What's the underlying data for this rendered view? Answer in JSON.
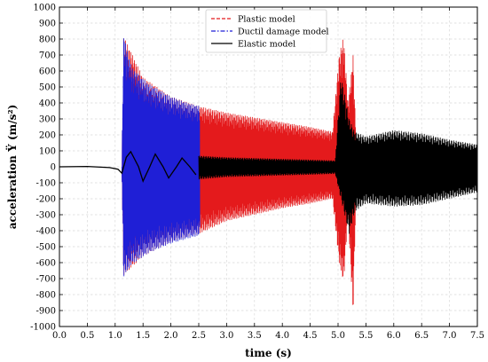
{
  "chart_data": {
    "type": "line",
    "title": "",
    "xlabel": "time (s)",
    "ylabel": "acceleration Ÿ (m/s²)",
    "xlim": [
      0.0,
      7.5
    ],
    "ylim": [
      -1000,
      1000
    ],
    "x_ticks": [
      "0.0",
      "0.5",
      "1.0",
      "1.5",
      "2.0",
      "2.5",
      "3.0",
      "3.5",
      "4.0",
      "4.5",
      "5.0",
      "5.5",
      "6.0",
      "6.5",
      "7.0",
      "7.5"
    ],
    "y_ticks": [
      "-1000",
      "-900",
      "-800",
      "-700",
      "-600",
      "-500",
      "-400",
      "-300",
      "-200",
      "-100",
      "0",
      "100",
      "200",
      "300",
      "400",
      "500",
      "600",
      "700",
      "800",
      "900",
      "1000"
    ],
    "grid": true,
    "legend_position": "top-center",
    "series": [
      {
        "name": "Plastic model",
        "color": "#e41a1c",
        "style": "dashed",
        "envelope_points": [
          {
            "x": 1.12,
            "upper": 0,
            "lower": 0
          },
          {
            "x": 1.15,
            "upper": 820,
            "lower": -680
          },
          {
            "x": 1.5,
            "upper": 560,
            "lower": -560
          },
          {
            "x": 2.0,
            "upper": 440,
            "lower": -470
          },
          {
            "x": 2.5,
            "upper": 380,
            "lower": -420
          },
          {
            "x": 3.0,
            "upper": 340,
            "lower": -340
          },
          {
            "x": 3.5,
            "upper": 310,
            "lower": -300
          },
          {
            "x": 4.0,
            "upper": 280,
            "lower": -260
          },
          {
            "x": 4.5,
            "upper": 250,
            "lower": -230
          },
          {
            "x": 4.9,
            "upper": 220,
            "lower": -200
          },
          {
            "x": 5.02,
            "upper": 700,
            "lower": -600
          },
          {
            "x": 5.1,
            "upper": 820,
            "lower": -730
          },
          {
            "x": 5.18,
            "upper": 400,
            "lower": -300
          },
          {
            "x": 5.27,
            "upper": 700,
            "lower": -930
          },
          {
            "x": 5.32,
            "upper": 200,
            "lower": -200
          },
          {
            "x": 5.35,
            "upper": 0,
            "lower": 0
          }
        ]
      },
      {
        "name": "Ductil damage model",
        "color": "#1f1fd6",
        "style": "dash-dot",
        "envelope_points": [
          {
            "x": 1.12,
            "upper": 0,
            "lower": 0
          },
          {
            "x": 1.15,
            "upper": 825,
            "lower": -690
          },
          {
            "x": 1.3,
            "upper": 620,
            "lower": -610
          },
          {
            "x": 1.6,
            "upper": 520,
            "lower": -540
          },
          {
            "x": 2.0,
            "upper": 440,
            "lower": -480
          },
          {
            "x": 2.3,
            "upper": 400,
            "lower": -450
          },
          {
            "x": 2.52,
            "upper": 380,
            "lower": -430
          }
        ]
      },
      {
        "name": "Elastic model",
        "color": "#000000",
        "style": "solid",
        "points": [
          {
            "x": 0.0,
            "y": 0
          },
          {
            "x": 0.5,
            "y": 2
          },
          {
            "x": 0.9,
            "y": -5
          },
          {
            "x": 1.05,
            "y": -15
          },
          {
            "x": 1.12,
            "y": -40
          },
          {
            "x": 1.2,
            "y": 60
          },
          {
            "x": 1.28,
            "y": 95
          },
          {
            "x": 1.42,
            "y": 0
          },
          {
            "x": 1.5,
            "y": -90
          },
          {
            "x": 1.62,
            "y": 0
          },
          {
            "x": 1.72,
            "y": 80
          },
          {
            "x": 1.86,
            "y": 0
          },
          {
            "x": 1.96,
            "y": -70
          },
          {
            "x": 2.1,
            "y": 0
          },
          {
            "x": 2.2,
            "y": 55
          },
          {
            "x": 2.34,
            "y": 0
          },
          {
            "x": 2.45,
            "y": -50
          }
        ],
        "envelope_points": [
          {
            "x": 2.5,
            "upper": 70,
            "lower": -80
          },
          {
            "x": 3.0,
            "upper": 60,
            "lower": -65
          },
          {
            "x": 3.5,
            "upper": 55,
            "lower": -60
          },
          {
            "x": 4.0,
            "upper": 50,
            "lower": -55
          },
          {
            "x": 4.5,
            "upper": 45,
            "lower": -50
          },
          {
            "x": 4.95,
            "upper": 40,
            "lower": -45
          },
          {
            "x": 5.05,
            "upper": 580,
            "lower": -200
          },
          {
            "x": 5.2,
            "upper": 300,
            "lower": -420
          },
          {
            "x": 5.3,
            "upper": 220,
            "lower": -280
          },
          {
            "x": 5.5,
            "upper": 190,
            "lower": -230
          },
          {
            "x": 6.0,
            "upper": 230,
            "lower": -250
          },
          {
            "x": 6.5,
            "upper": 210,
            "lower": -240
          },
          {
            "x": 7.0,
            "upper": 170,
            "lower": -200
          },
          {
            "x": 7.5,
            "upper": 140,
            "lower": -160
          }
        ]
      }
    ]
  }
}
